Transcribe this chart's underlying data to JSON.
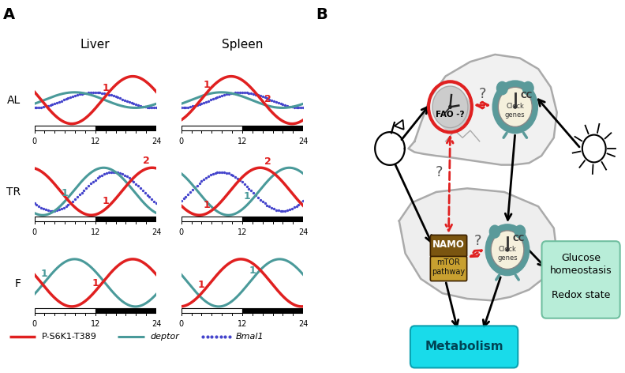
{
  "fig_width": 7.92,
  "fig_height": 4.72,
  "panel_A_label": "A",
  "panel_B_label": "B",
  "col_titles": [
    "Liver",
    "Spleen"
  ],
  "row_labels": [
    "AL",
    "TR",
    "F"
  ],
  "red_color": "#e02020",
  "teal_color": "#4a9a9a",
  "blue_dot_color": "#4444cc",
  "legend_labels": [
    "P-S6K1-T389",
    "deptor",
    "Bmal1"
  ],
  "plots": {
    "AL_liver": {
      "red_phase": 3.5,
      "red_amp": 0.55,
      "teal_phase": 0.5,
      "teal_amp": 0.18,
      "dot_phase": 1.5,
      "dot_amp": 0.18,
      "peaks_red": [
        {
          "x": 14,
          "label": "1"
        }
      ],
      "peaks_teal": []
    },
    "AL_spleen": {
      "red_phase": 1.0,
      "red_amp": 0.55,
      "teal_phase": 0.5,
      "teal_amp": 0.18,
      "dot_phase": 1.5,
      "dot_amp": 0.18,
      "peaks_red": [
        {
          "x": 5,
          "label": "1"
        },
        {
          "x": 17,
          "label": "2"
        }
      ],
      "peaks_teal": []
    },
    "TR_liver": {
      "red_phase": 4.5,
      "red_amp": 0.55,
      "teal_phase": 2.0,
      "teal_amp": 0.55,
      "dot_phase": 2.5,
      "dot_amp": 0.45,
      "peaks_red": [
        {
          "x": 14,
          "label": "1"
        },
        {
          "x": 22,
          "label": "2"
        }
      ],
      "peaks_teal": [
        {
          "x": 6,
          "label": "1"
        }
      ]
    },
    "TR_spleen": {
      "red_phase": 2.5,
      "red_amp": 0.55,
      "teal_phase": 4.0,
      "teal_amp": 0.55,
      "dot_phase": 0.5,
      "dot_amp": 0.45,
      "peaks_red": [
        {
          "x": 5,
          "label": "1"
        },
        {
          "x": 17,
          "label": "2"
        }
      ],
      "peaks_teal": [
        {
          "x": 13,
          "label": "1"
        }
      ]
    },
    "F_liver": {
      "red_phase": 3.5,
      "red_amp": 0.55,
      "teal_phase": 0.5,
      "teal_amp": 0.55,
      "dot_phase": null,
      "dot_amp": null,
      "peaks_red": [
        {
          "x": 12,
          "label": "1"
        }
      ],
      "peaks_teal": [
        {
          "x": 2,
          "label": "1"
        }
      ]
    },
    "F_spleen": {
      "red_phase": 1.5,
      "red_amp": 0.55,
      "teal_phase": 3.5,
      "teal_amp": 0.55,
      "dot_phase": null,
      "dot_amp": null,
      "peaks_red": [
        {
          "x": 4,
          "label": "1"
        }
      ],
      "peaks_teal": [
        {
          "x": 14,
          "label": "1"
        }
      ]
    }
  }
}
